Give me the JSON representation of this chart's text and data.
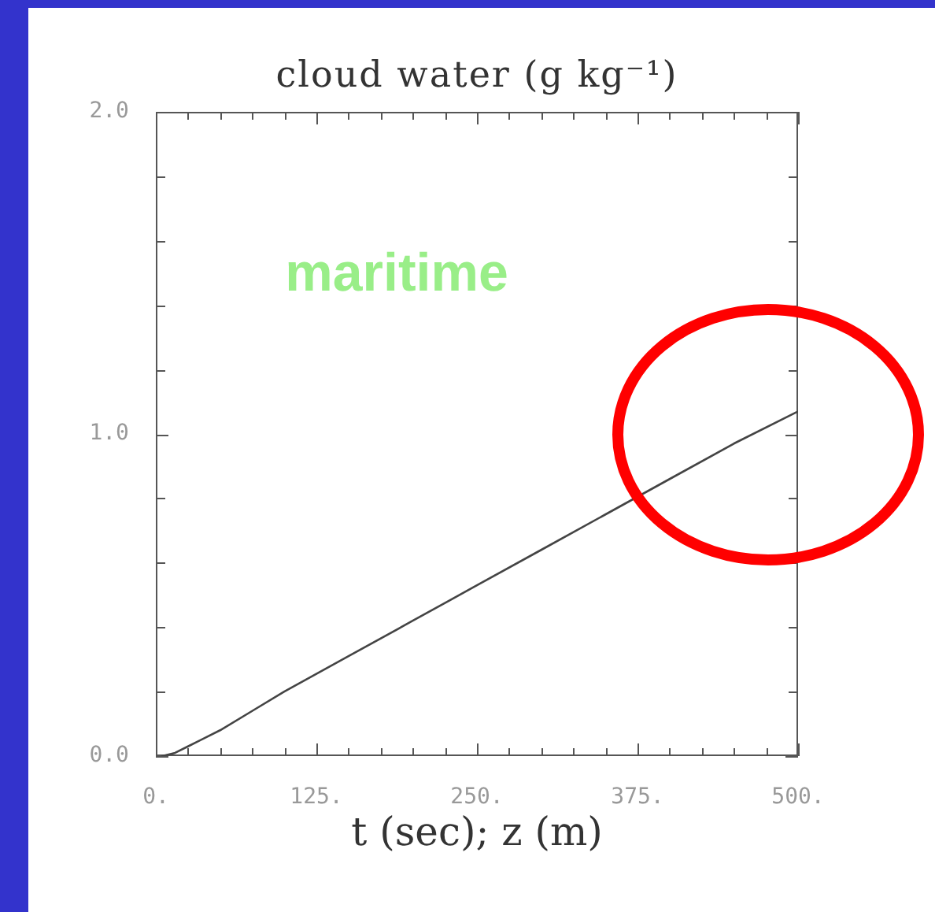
{
  "chart_data": {
    "type": "line",
    "title": "cloud water (g kg⁻¹)",
    "xlabel": "t (sec); z (m)",
    "annotations": [
      "maritime"
    ],
    "x": [
      5,
      15,
      25,
      50,
      75,
      100,
      150,
      200,
      250,
      300,
      350,
      400,
      450,
      500
    ],
    "values": [
      0,
      0.01,
      0.03,
      0.08,
      0.14,
      0.2,
      0.31,
      0.42,
      0.53,
      0.64,
      0.75,
      0.86,
      0.97,
      1.07
    ],
    "color": "#444444",
    "xlim": [
      0,
      500
    ],
    "xticks": [
      {
        "value": 0,
        "label": "0."
      },
      {
        "value": 25,
        "label": null
      },
      {
        "value": 50,
        "label": null
      },
      {
        "value": 75,
        "label": null
      },
      {
        "value": 100,
        "label": null
      },
      {
        "value": 125,
        "label": "125."
      },
      {
        "value": 150,
        "label": null
      },
      {
        "value": 175,
        "label": null
      },
      {
        "value": 200,
        "label": null
      },
      {
        "value": 225,
        "label": null
      },
      {
        "value": 250,
        "label": "250."
      },
      {
        "value": 275,
        "label": null
      },
      {
        "value": 300,
        "label": null
      },
      {
        "value": 325,
        "label": null
      },
      {
        "value": 350,
        "label": null
      },
      {
        "value": 375,
        "label": "375."
      },
      {
        "value": 400,
        "label": null
      },
      {
        "value": 425,
        "label": null
      },
      {
        "value": 450,
        "label": null
      },
      {
        "value": 475,
        "label": null
      },
      {
        "value": 500,
        "label": "500."
      }
    ],
    "ylim": [
      0,
      2
    ],
    "yticks": [
      {
        "value": 0,
        "label": "0.0"
      },
      {
        "value": 0.2,
        "label": null
      },
      {
        "value": 0.4,
        "label": null
      },
      {
        "value": 0.6,
        "label": null
      },
      {
        "value": 0.8,
        "label": null
      },
      {
        "value": 1,
        "label": "1.0"
      },
      {
        "value": 1.2,
        "label": null
      },
      {
        "value": 1.4,
        "label": null
      },
      {
        "value": 1.6,
        "label": null
      },
      {
        "value": 1.8,
        "label": null
      },
      {
        "value": 2,
        "label": "2.0"
      }
    ]
  }
}
